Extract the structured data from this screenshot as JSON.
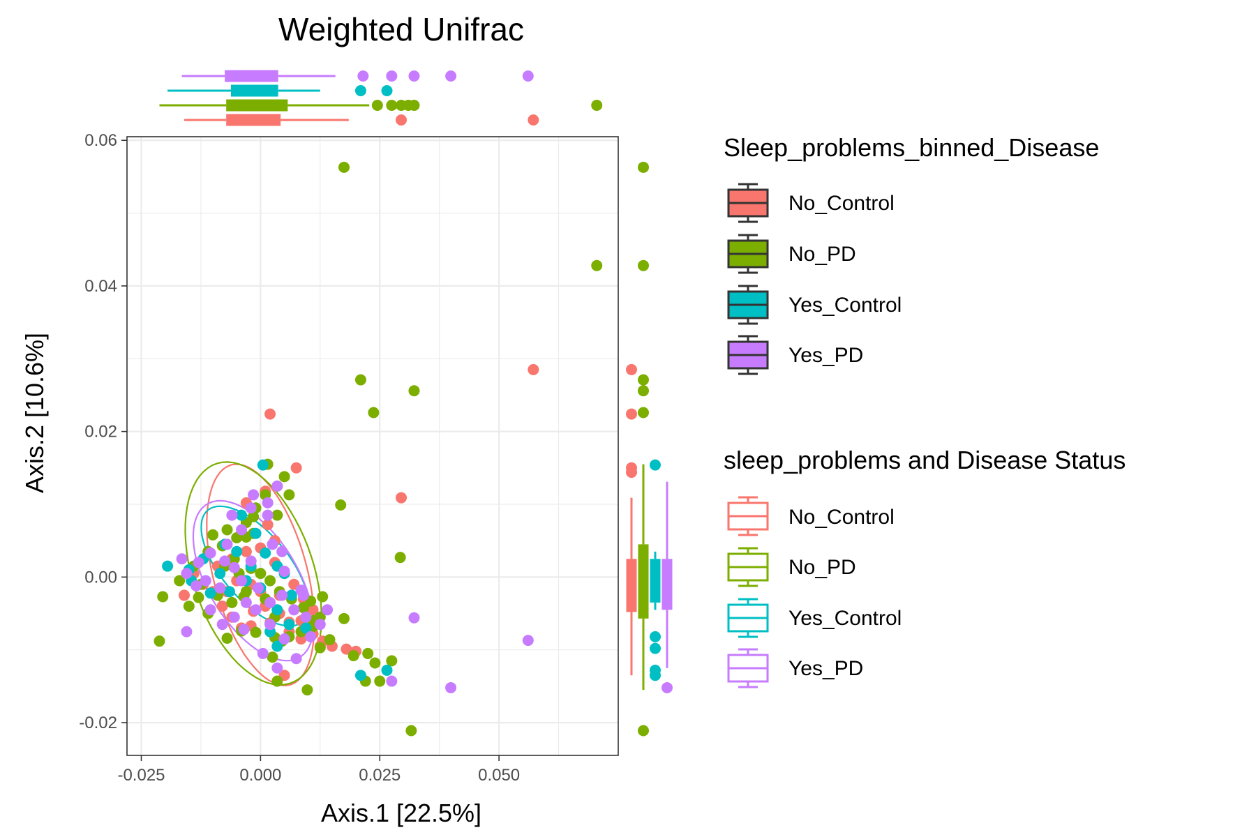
{
  "chart_data": {
    "type": "scatter",
    "title": "Weighted Unifrac",
    "xlabel": "Axis.1   [22.5%]",
    "ylabel": "Axis.2   [10.6%]",
    "xlim": [
      -0.028,
      0.075
    ],
    "ylim": [
      -0.0245,
      0.0605
    ],
    "x_ticks": [
      -0.025,
      0.0,
      0.025,
      0.05
    ],
    "x_tick_labels": [
      "-0.025",
      "0.000",
      "0.025",
      "0.050"
    ],
    "y_ticks": [
      -0.02,
      0.0,
      0.02,
      0.04,
      0.06
    ],
    "y_tick_labels": [
      "-0.02",
      "0.00",
      "0.02",
      "0.04",
      "0.06"
    ],
    "grid": true,
    "legend_placement": "right",
    "marginal_boxplots": [
      "top",
      "right"
    ],
    "fill_legend": {
      "title": "Sleep_problems_binned_Disease",
      "entries": [
        "No_Control",
        "No_PD",
        "Yes_Control",
        "Yes_PD"
      ]
    },
    "color_legend": {
      "title": "sleep_problems and Disease Status",
      "entries": [
        "No_Control",
        "No_PD",
        "Yes_Control",
        "Yes_PD"
      ]
    },
    "series": [
      {
        "name": "No_Control",
        "color": "#F8766D",
        "points": [
          [
            0.002,
            0.0224
          ],
          [
            0.0075,
            0.015
          ],
          [
            0.0295,
            0.0109
          ],
          [
            0.0572,
            0.0285
          ],
          [
            0.02,
            -0.0102
          ],
          [
            0.018,
            -0.0099
          ],
          [
            0.015,
            -0.0095
          ],
          [
            0.013,
            -0.0088
          ],
          [
            0.011,
            -0.0078
          ],
          [
            0.009,
            -0.0073
          ],
          [
            0.006,
            -0.0062
          ],
          [
            0.004,
            -0.005
          ],
          [
            0.002,
            -0.0063
          ],
          [
            -0.002,
            -0.0067
          ],
          [
            -0.004,
            -0.007
          ],
          [
            -0.006,
            -0.0055
          ],
          [
            -0.008,
            -0.004
          ],
          [
            -0.01,
            -0.002
          ],
          [
            -0.012,
            -0.001
          ],
          [
            -0.014,
            0.0005
          ],
          [
            -0.009,
            0.0015
          ],
          [
            -0.006,
            0.0025
          ],
          [
            -0.003,
            0.0035
          ],
          [
            0.0,
            0.004
          ],
          [
            0.003,
            0.002
          ],
          [
            0.005,
            0.0005
          ],
          [
            0.007,
            -0.001
          ],
          [
            0.009,
            -0.003
          ],
          [
            0.011,
            -0.0045
          ],
          [
            0.0,
            -0.002
          ],
          [
            -0.002,
            -0.001
          ],
          [
            -0.005,
            -0.0005
          ],
          [
            -0.007,
            -0.002
          ],
          [
            0.001,
            -0.004
          ],
          [
            0.004,
            -0.0025
          ],
          [
            0.006,
            -0.0075
          ],
          [
            0.0085,
            -0.0085
          ],
          [
            0.005,
            -0.0135
          ],
          [
            -0.0015,
            -0.0047
          ],
          [
            -0.016,
            -0.0025
          ],
          [
            0.001,
            0.0118
          ],
          [
            -0.003,
            0.0102
          ],
          [
            0.0015,
            0.0072
          ],
          [
            0.003,
            0.005
          ],
          [
            0.0085,
            -0.006
          ],
          [
            0.0125,
            -0.0095
          ]
        ]
      },
      {
        "name": "No_PD",
        "color": "#7CAE00",
        "points": [
          [
            0.0175,
            0.0563
          ],
          [
            0.0705,
            0.0428
          ],
          [
            0.021,
            0.0271
          ],
          [
            0.0322,
            0.0256
          ],
          [
            0.0237,
            0.0226
          ],
          [
            0.0293,
            0.0027
          ],
          [
            0.0168,
            0.0099
          ],
          [
            0.0316,
            -0.0211
          ],
          [
            -0.0212,
            -0.0088
          ],
          [
            -0.0205,
            -0.0027
          ],
          [
            0.0098,
            -0.0155
          ],
          [
            0.022,
            -0.0143
          ],
          [
            0.025,
            -0.0143
          ],
          [
            0.0275,
            -0.0115
          ],
          [
            0.024,
            -0.0118
          ],
          [
            0.0225,
            -0.0105
          ],
          [
            0.0195,
            -0.0108
          ],
          [
            0.0035,
            -0.0143
          ],
          [
            0.0045,
            -0.0088
          ],
          [
            0.0175,
            -0.0057
          ],
          [
            0.0125,
            -0.0055
          ],
          [
            0.011,
            -0.0068
          ],
          [
            0.0085,
            -0.0075
          ],
          [
            0.006,
            -0.0082
          ],
          [
            0.003,
            -0.0083
          ],
          [
            -0.001,
            -0.0076
          ],
          [
            -0.004,
            -0.0074
          ],
          [
            -0.007,
            -0.0084
          ],
          [
            -0.011,
            -0.005
          ],
          [
            -0.013,
            -0.0028
          ],
          [
            -0.015,
            -0.004
          ],
          [
            -0.017,
            -0.0005
          ],
          [
            -0.014,
            0.0015
          ],
          [
            -0.011,
            0.0035
          ],
          [
            -0.01,
            0.0058
          ],
          [
            -0.007,
            0.0065
          ],
          [
            -0.005,
            0.0054
          ],
          [
            -0.003,
            0.0075
          ],
          [
            -0.001,
            0.0095
          ],
          [
            0.001,
            0.0113
          ],
          [
            0.0035,
            0.0125
          ],
          [
            0.005,
            0.0138
          ],
          [
            0.0015,
            0.0155
          ],
          [
            -0.003,
            0.0055
          ],
          [
            -0.0055,
            0.0025
          ],
          [
            -0.0075,
            0.0015
          ],
          [
            -0.002,
            0.0012
          ],
          [
            0.0,
            0.0005
          ],
          [
            0.002,
            -0.0005
          ],
          [
            0.004,
            -0.002
          ],
          [
            0.0065,
            -0.003
          ],
          [
            0.009,
            -0.0042
          ],
          [
            0.011,
            -0.006
          ],
          [
            -0.0085,
            -0.0015
          ],
          [
            -0.006,
            -0.0035
          ],
          [
            -0.009,
            -0.0025
          ],
          [
            -0.0125,
            -0.001
          ],
          [
            -0.0045,
            0.0005
          ],
          [
            -0.003,
            -0.002
          ],
          [
            0.001,
            -0.003
          ],
          [
            0.003,
            -0.0055
          ],
          [
            -0.0035,
            -0.0027
          ],
          [
            0.0105,
            -0.0033
          ],
          [
            0.0145,
            -0.0086
          ],
          [
            0.0025,
            -0.011
          ],
          [
            -0.0015,
            0.0083
          ],
          [
            0.0125,
            -0.0097
          ],
          [
            0.013,
            -0.0027
          ],
          [
            -0.008,
            0.0043
          ],
          [
            -0.0015,
            0.006
          ],
          [
            0.0035,
            0.0085
          ],
          [
            0.006,
            0.0113
          ]
        ]
      },
      {
        "name": "Yes_Control",
        "color": "#00BFC4",
        "points": [
          [
            0.0005,
            0.0154
          ],
          [
            -0.0195,
            0.0015
          ],
          [
            0.021,
            -0.0135
          ],
          [
            0.0265,
            -0.0128
          ],
          [
            -0.015,
            0.001
          ],
          [
            -0.012,
            0.0025
          ],
          [
            -0.0085,
            0.0005
          ],
          [
            -0.005,
            0.0035
          ],
          [
            -0.002,
            0.0015
          ],
          [
            0.001,
            0.0033
          ],
          [
            0.0035,
            0.0015
          ],
          [
            -0.0065,
            -0.002
          ],
          [
            -0.003,
            -0.0005
          ],
          [
            0.0,
            -0.0015
          ],
          [
            0.0035,
            -0.0045
          ],
          [
            0.006,
            -0.0065
          ],
          [
            0.0095,
            -0.007
          ],
          [
            -0.001,
            0.006
          ],
          [
            -0.004,
            0.0085
          ],
          [
            0.002,
            -0.0075
          ],
          [
            -0.0105,
            -0.0022
          ],
          [
            0.005,
            0.0005
          ],
          [
            0.0065,
            -0.0025
          ],
          [
            -0.0075,
            0.0045
          ],
          [
            0.0035,
            -0.0095
          ],
          [
            -0.0145,
            -0.0005
          ]
        ]
      },
      {
        "name": "Yes_PD",
        "color": "#C77CFF",
        "points": [
          [
            0.0561,
            -0.0087
          ],
          [
            0.0399,
            -0.0152
          ],
          [
            0.0322,
            -0.0056
          ],
          [
            0.0275,
            -0.0143
          ],
          [
            0.0035,
            0.0125
          ],
          [
            -0.0015,
            0.0113
          ],
          [
            0.0015,
            0.0085
          ],
          [
            -0.004,
            0.0065
          ],
          [
            -0.007,
            0.0045
          ],
          [
            -0.0105,
            0.0033
          ],
          [
            -0.013,
            0.002
          ],
          [
            -0.0165,
            0.0025
          ],
          [
            -0.0155,
            0.0005
          ],
          [
            -0.0135,
            -0.0012
          ],
          [
            -0.0105,
            -0.0045
          ],
          [
            -0.008,
            -0.0065
          ],
          [
            -0.0055,
            -0.0055
          ],
          [
            -0.003,
            -0.0035
          ],
          [
            -0.001,
            -0.0045
          ],
          [
            0.002,
            -0.0035
          ],
          [
            0.0045,
            -0.0025
          ],
          [
            0.007,
            -0.0045
          ],
          [
            0.0095,
            -0.0055
          ],
          [
            0.0125,
            -0.0065
          ],
          [
            0.014,
            -0.0045
          ],
          [
            0.0085,
            -0.0018
          ],
          [
            0.005,
            0.0008
          ],
          [
            0.0025,
            0.0045
          ],
          [
            -0.002,
            0.0022
          ],
          [
            -0.0055,
            0.0013
          ],
          [
            -0.0085,
            -0.0015
          ],
          [
            -0.0115,
            -0.0005
          ],
          [
            -0.0075,
            0.0022
          ],
          [
            -0.004,
            -0.0005
          ],
          [
            -0.0005,
            -0.0015
          ],
          [
            0.002,
            -0.0065
          ],
          [
            0.005,
            -0.0085
          ],
          [
            0.0005,
            -0.0105
          ],
          [
            0.0035,
            -0.0125
          ],
          [
            0.0075,
            -0.0112
          ],
          [
            -0.006,
            0.0085
          ],
          [
            -0.002,
            0.0095
          ],
          [
            0.0045,
            0.0035
          ],
          [
            0.0105,
            -0.0082
          ],
          [
            -0.0155,
            -0.0075
          ],
          [
            -0.0035,
            -0.0072
          ],
          [
            0.009,
            -0.0025
          ],
          [
            0.0015,
            0.0102
          ]
        ]
      }
    ],
    "ellipses": [
      {
        "name": "No_Control",
        "color": "#F8766D",
        "cx": 0.0,
        "cy": 0.0003,
        "rx": 0.0165,
        "ry": 0.0093,
        "angle_deg": 62
      },
      {
        "name": "No_PD",
        "color": "#7CAE00",
        "cx": -0.0015,
        "cy": 0.0005,
        "rx": 0.0175,
        "ry": 0.0115,
        "angle_deg": 50
      },
      {
        "name": "Yes_Control",
        "color": "#00BFC4",
        "cx": -0.0012,
        "cy": 0.0015,
        "rx": 0.0128,
        "ry": 0.0055,
        "angle_deg": 32
      },
      {
        "name": "Yes_PD",
        "color": "#C77CFF",
        "cx": -0.0015,
        "cy": -0.0005,
        "rx": 0.0148,
        "ry": 0.0078,
        "angle_deg": 38
      }
    ],
    "boxplots_x": [
      {
        "name": "No_Control",
        "color": "#F8766D",
        "whisker_low": -0.016,
        "q1": -0.0072,
        "median": -0.0015,
        "q3": 0.0042,
        "whisker_high": 0.0185,
        "outliers": [
          0.0295,
          0.0572
        ]
      },
      {
        "name": "No_PD",
        "color": "#7CAE00",
        "whisker_low": -0.0212,
        "q1": -0.0072,
        "median": -0.0015,
        "q3": 0.0057,
        "whisker_high": 0.0228,
        "outliers": [
          0.0245,
          0.0275,
          0.0295,
          0.031,
          0.0322,
          0.0705
        ]
      },
      {
        "name": "Yes_Control",
        "color": "#00BFC4",
        "whisker_low": -0.0195,
        "q1": -0.0062,
        "median": -0.0012,
        "q3": 0.0037,
        "whisker_high": 0.0125,
        "outliers": [
          0.021,
          0.0265
        ]
      },
      {
        "name": "Yes_PD",
        "color": "#C77CFF",
        "whisker_low": -0.0165,
        "q1": -0.0075,
        "median": -0.0015,
        "q3": 0.0037,
        "whisker_high": 0.0157,
        "outliers": [
          0.0215,
          0.0275,
          0.0322,
          0.0399,
          0.0561
        ]
      }
    ],
    "boxplots_y": [
      {
        "name": "No_Control",
        "color": "#F8766D",
        "whisker_low": -0.0135,
        "q1": -0.0048,
        "median": -0.0005,
        "q3": 0.0025,
        "whisker_high": 0.0109,
        "outliers": [
          0.0144,
          0.015,
          0.0224,
          0.0285
        ]
      },
      {
        "name": "No_PD",
        "color": "#7CAE00",
        "whisker_low": -0.0155,
        "q1": -0.0057,
        "median": -0.0005,
        "q3": 0.0045,
        "whisker_high": 0.0155,
        "outliers": [
          -0.0211,
          0.0226,
          0.0256,
          0.0271,
          0.0428,
          0.0563
        ]
      },
      {
        "name": "Yes_Control",
        "color": "#00BFC4",
        "whisker_low": -0.0045,
        "q1": -0.0035,
        "median": -0.0005,
        "q3": 0.0025,
        "whisker_high": 0.0035,
        "outliers": [
          -0.0135,
          -0.0128,
          -0.0098,
          -0.0082,
          0.0154
        ]
      },
      {
        "name": "Yes_PD",
        "color": "#C77CFF",
        "whisker_low": -0.0125,
        "q1": -0.0045,
        "median": -0.0005,
        "q3": 0.0025,
        "whisker_high": 0.0131,
        "outliers": [
          -0.0152
        ]
      }
    ]
  }
}
